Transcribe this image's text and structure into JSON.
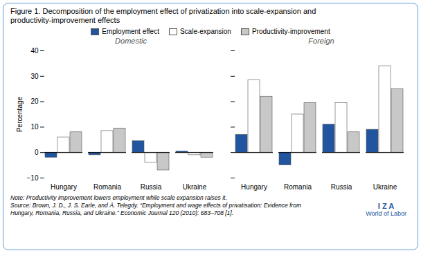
{
  "title": "Figure 1. Decomposition of the employment effect of privatization into scale-expansion and",
  "subtitle": "productivity-improvement effects",
  "annotations": [
    "Note: Productivity improvement lowers employment while scale expansion raises it.",
    "Source: Brown, J. D., J. S. Earle, and Á. Telegdy. “Employment and wage effects of privatisation: Evidence from",
    "Hungary, Romania, Russia, and Ukraine.” Economic Journal 120 (2010): 683–708 [1].",
    "I Z A",
    "World of Labor"
  ],
  "chart_data": [
    {
      "type": "bar",
      "title": "Domestic",
      "categories": [
        "Hungary",
        "Romania",
        "Russia",
        "Ukraine"
      ],
      "series": [
        {
          "name": "Employment effect",
          "color": "#2255A0",
          "values": [
            -2.0,
            -1.0,
            4.5,
            0.5
          ]
        },
        {
          "name": "Scale-expansion",
          "color": "#FFFFFF",
          "values": [
            6.0,
            8.5,
            -4.0,
            -1.0
          ]
        },
        {
          "name": "Productivity-improvement",
          "color": "#C8C8C8",
          "values": [
            8.0,
            9.5,
            -7.0,
            -2.0
          ]
        }
      ],
      "ylabel": "Percentage",
      "ylim": [
        -10,
        40
      ],
      "yticks": [
        -10,
        0,
        10,
        20,
        30,
        40
      ],
      "grid": false,
      "legend": "top"
    },
    {
      "type": "bar",
      "title": "Foreign",
      "categories": [
        "Hungary",
        "Romania",
        "Russia",
        "Ukraine"
      ],
      "series": [
        {
          "name": "Employment effect",
          "color": "#2255A0",
          "values": [
            7.0,
            -5.0,
            11.0,
            9.0
          ]
        },
        {
          "name": "Scale-expansion",
          "color": "#FFFFFF",
          "values": [
            28.5,
            15.0,
            19.5,
            34.0
          ]
        },
        {
          "name": "Productivity-improvement",
          "color": "#C8C8C8",
          "values": [
            22.0,
            19.5,
            8.0,
            25.0
          ]
        }
      ],
      "ylim": [
        -10,
        40
      ],
      "yticks": [
        -10,
        0,
        10,
        20,
        30,
        40
      ],
      "grid": false,
      "tick_labels": "x"
    }
  ]
}
